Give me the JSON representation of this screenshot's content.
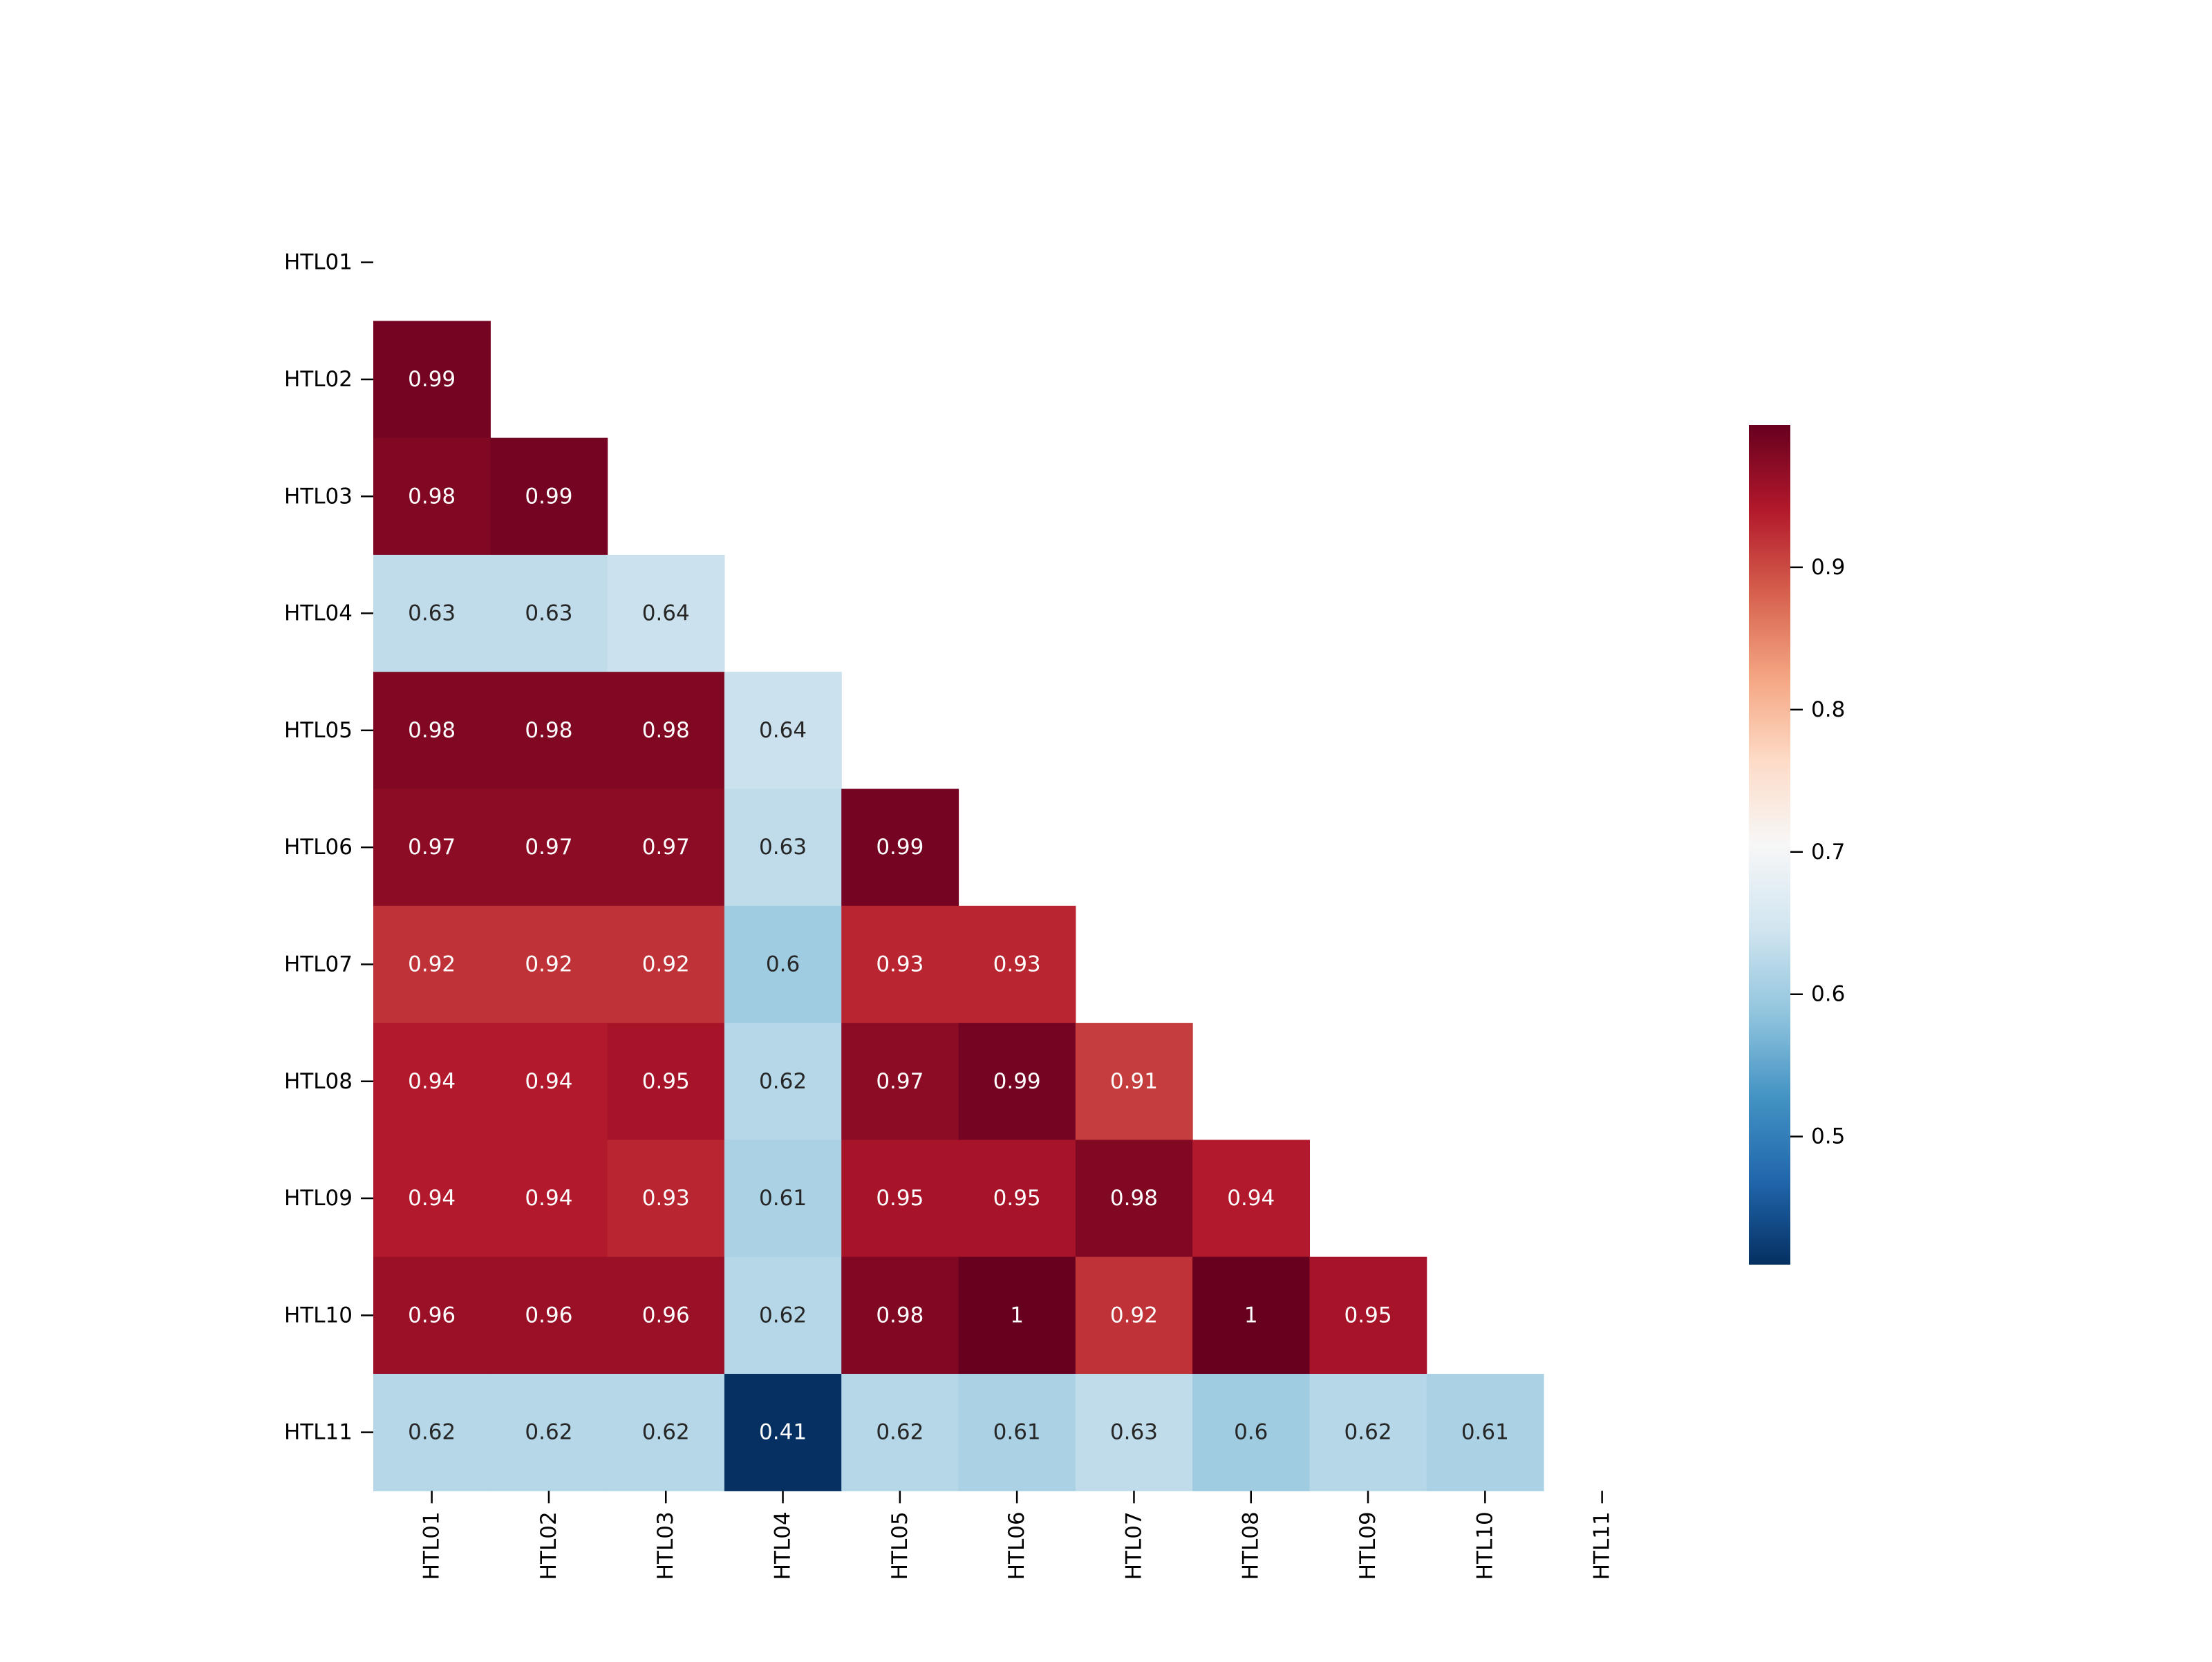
{
  "chart_data": {
    "type": "heatmap",
    "title": "",
    "xlabel": "",
    "ylabel": "",
    "mask": "upper-triangle-including-diagonal",
    "colormap": "RdBu_r",
    "vmin": 0.41,
    "vmax": 1.0,
    "row_labels": [
      "HTL01",
      "HTL02",
      "HTL03",
      "HTL04",
      "HTL05",
      "HTL06",
      "HTL07",
      "HTL08",
      "HTL09",
      "HTL10",
      "HTL11"
    ],
    "col_labels": [
      "HTL01",
      "HTL02",
      "HTL03",
      "HTL04",
      "HTL05",
      "HTL06",
      "HTL07",
      "HTL08",
      "HTL09",
      "HTL10",
      "HTL11"
    ],
    "values": [
      [],
      [
        0.99
      ],
      [
        0.98,
        0.99
      ],
      [
        0.63,
        0.63,
        0.64
      ],
      [
        0.98,
        0.98,
        0.98,
        0.64
      ],
      [
        0.97,
        0.97,
        0.97,
        0.63,
        0.99
      ],
      [
        0.92,
        0.92,
        0.92,
        0.6,
        0.93,
        0.93
      ],
      [
        0.94,
        0.94,
        0.95,
        0.62,
        0.97,
        0.99,
        0.91
      ],
      [
        0.94,
        0.94,
        0.93,
        0.61,
        0.95,
        0.95,
        0.98,
        0.94
      ],
      [
        0.96,
        0.96,
        0.96,
        0.62,
        0.98,
        1.0,
        0.92,
        1.0,
        0.95
      ],
      [
        0.62,
        0.62,
        0.62,
        0.41,
        0.62,
        0.61,
        0.63,
        0.6,
        0.62,
        0.61
      ]
    ],
    "annotations": [
      [],
      [
        "0.99"
      ],
      [
        "0.98",
        "0.99"
      ],
      [
        "0.63",
        "0.63",
        "0.64"
      ],
      [
        "0.98",
        "0.98",
        "0.98",
        "0.64"
      ],
      [
        "0.97",
        "0.97",
        "0.97",
        "0.63",
        "0.99"
      ],
      [
        "0.92",
        "0.92",
        "0.92",
        "0.6",
        "0.93",
        "0.93"
      ],
      [
        "0.94",
        "0.94",
        "0.95",
        "0.62",
        "0.97",
        "0.99",
        "0.91"
      ],
      [
        "0.94",
        "0.94",
        "0.93",
        "0.61",
        "0.95",
        "0.95",
        "0.98",
        "0.94"
      ],
      [
        "0.96",
        "0.96",
        "0.96",
        "0.62",
        "0.98",
        "1",
        "0.92",
        "1",
        "0.95"
      ],
      [
        "0.62",
        "0.62",
        "0.62",
        "0.41",
        "0.62",
        "0.61",
        "0.63",
        "0.6",
        "0.62",
        "0.61"
      ]
    ],
    "colorbar": {
      "ticks": [
        0.5,
        0.6,
        0.7,
        0.8,
        0.9
      ],
      "tick_labels": [
        "0.5",
        "0.6",
        "0.7",
        "0.8",
        "0.9"
      ],
      "range": [
        0.41,
        1.0
      ],
      "placement": "right"
    },
    "colors": {
      "low": "#053061",
      "mid": "#f7f7f7",
      "high": "#67001f",
      "text_dark": "#262626",
      "text_light": "#ffffff"
    }
  }
}
